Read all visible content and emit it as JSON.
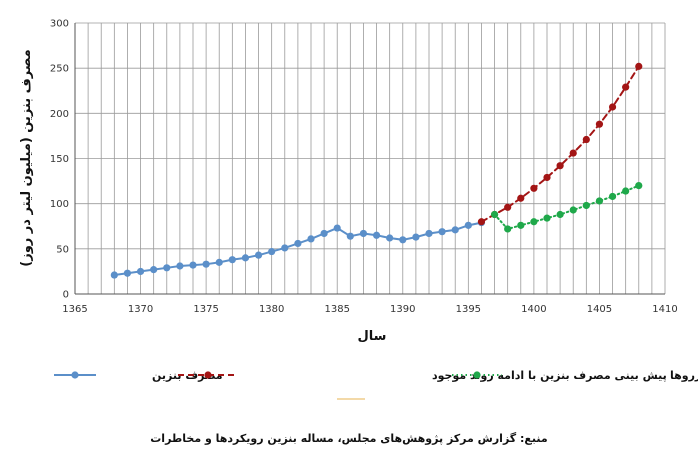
{
  "chart_data": {
    "type": "line",
    "xlabel": "سال",
    "ylabel": "مصرف بنزین (میلیون لیتر در روز)",
    "xlim": [
      1365,
      1410
    ],
    "ylim": [
      0,
      300
    ],
    "xticks": [
      1365,
      1370,
      1375,
      1380,
      1385,
      1390,
      1395,
      1400,
      1405,
      1410
    ],
    "yticks": [
      0,
      50,
      100,
      150,
      200,
      250,
      300
    ],
    "grid": true,
    "legend_position": "bottom",
    "series": [
      {
        "name": "مصرف بنزین",
        "color": "#5b8fc9",
        "style": "solid",
        "x": [
          1368,
          1369,
          1370,
          1371,
          1372,
          1373,
          1374,
          1375,
          1376,
          1377,
          1378,
          1379,
          1380,
          1381,
          1382,
          1383,
          1384,
          1385,
          1386,
          1387,
          1388,
          1389,
          1390,
          1391,
          1392,
          1393,
          1394,
          1395,
          1396
        ],
        "y": [
          21,
          23,
          25,
          27,
          29,
          31,
          32,
          33,
          35,
          38,
          40,
          43,
          47,
          51,
          56,
          61,
          67,
          73,
          64,
          67,
          65,
          62,
          60,
          63,
          67,
          69,
          71,
          76,
          79
        ]
      },
      {
        "name": "پیش بینی مصرف بنزین با ادامه روند موجود",
        "color": "#a31515",
        "style": "dashed",
        "x": [
          1396,
          1397,
          1398,
          1399,
          1400,
          1401,
          1402,
          1403,
          1404,
          1405,
          1406,
          1407,
          1408
        ],
        "y": [
          80,
          88,
          96,
          106,
          117,
          129,
          142,
          156,
          171,
          188,
          207,
          229,
          252
        ]
      },
      {
        "name": "مصرف بنزین با اصلاح مصرف خورروها",
        "color": "#1fa84a",
        "style": "dotted",
        "x": [
          1397,
          1398,
          1399,
          1400,
          1401,
          1402,
          1403,
          1404,
          1405,
          1406,
          1407,
          1408
        ],
        "y": [
          88,
          72,
          76,
          80,
          84,
          88,
          93,
          98,
          103,
          108,
          114,
          120
        ]
      }
    ]
  },
  "caption": "منبع: گزارش مرکز پژوهش‌های مجلس، مساله بنزین رویکردها و مخاطرات"
}
